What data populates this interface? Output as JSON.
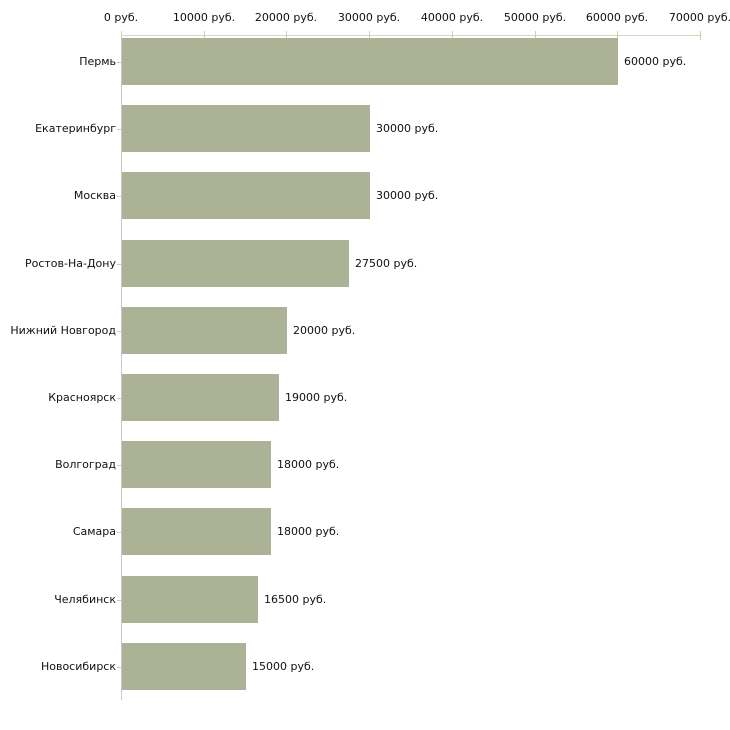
{
  "chart_data": {
    "type": "bar",
    "orientation": "horizontal",
    "title": "",
    "unit": "руб.",
    "categories": [
      "Пермь",
      "Екатеринбург",
      "Москва",
      "Ростов-На-Дону",
      "Нижний Новгород",
      "Красноярск",
      "Волгоград",
      "Самара",
      "Челябинск",
      "Новосибирск"
    ],
    "values": [
      60000,
      30000,
      30000,
      27500,
      20000,
      19000,
      18000,
      18000,
      16500,
      15000
    ],
    "value_labels": [
      "60000 руб.",
      "30000 руб.",
      "30000 руб.",
      "27500 руб.",
      "20000 руб.",
      "19000 руб.",
      "18000 руб.",
      "18000 руб.",
      "16500 руб.",
      "15000 руб."
    ],
    "x_axis": {
      "position": "top",
      "min": 0,
      "max": 70000,
      "tick_interval": 10000,
      "tick_labels": [
        "0 руб.",
        "10000 руб.",
        "20000 руб.",
        "30000 руб.",
        "40000 руб.",
        "50000 руб.",
        "60000 руб.",
        "70000 руб."
      ]
    },
    "grid": false,
    "legend": false,
    "colors": {
      "bar_fill": "#abb296",
      "axis_line": "#c8c8c8",
      "top_axis_line": "#d6d6c6",
      "tick_mark": "#cfcfad",
      "text": "#111111",
      "background": "#ffffff"
    }
  }
}
